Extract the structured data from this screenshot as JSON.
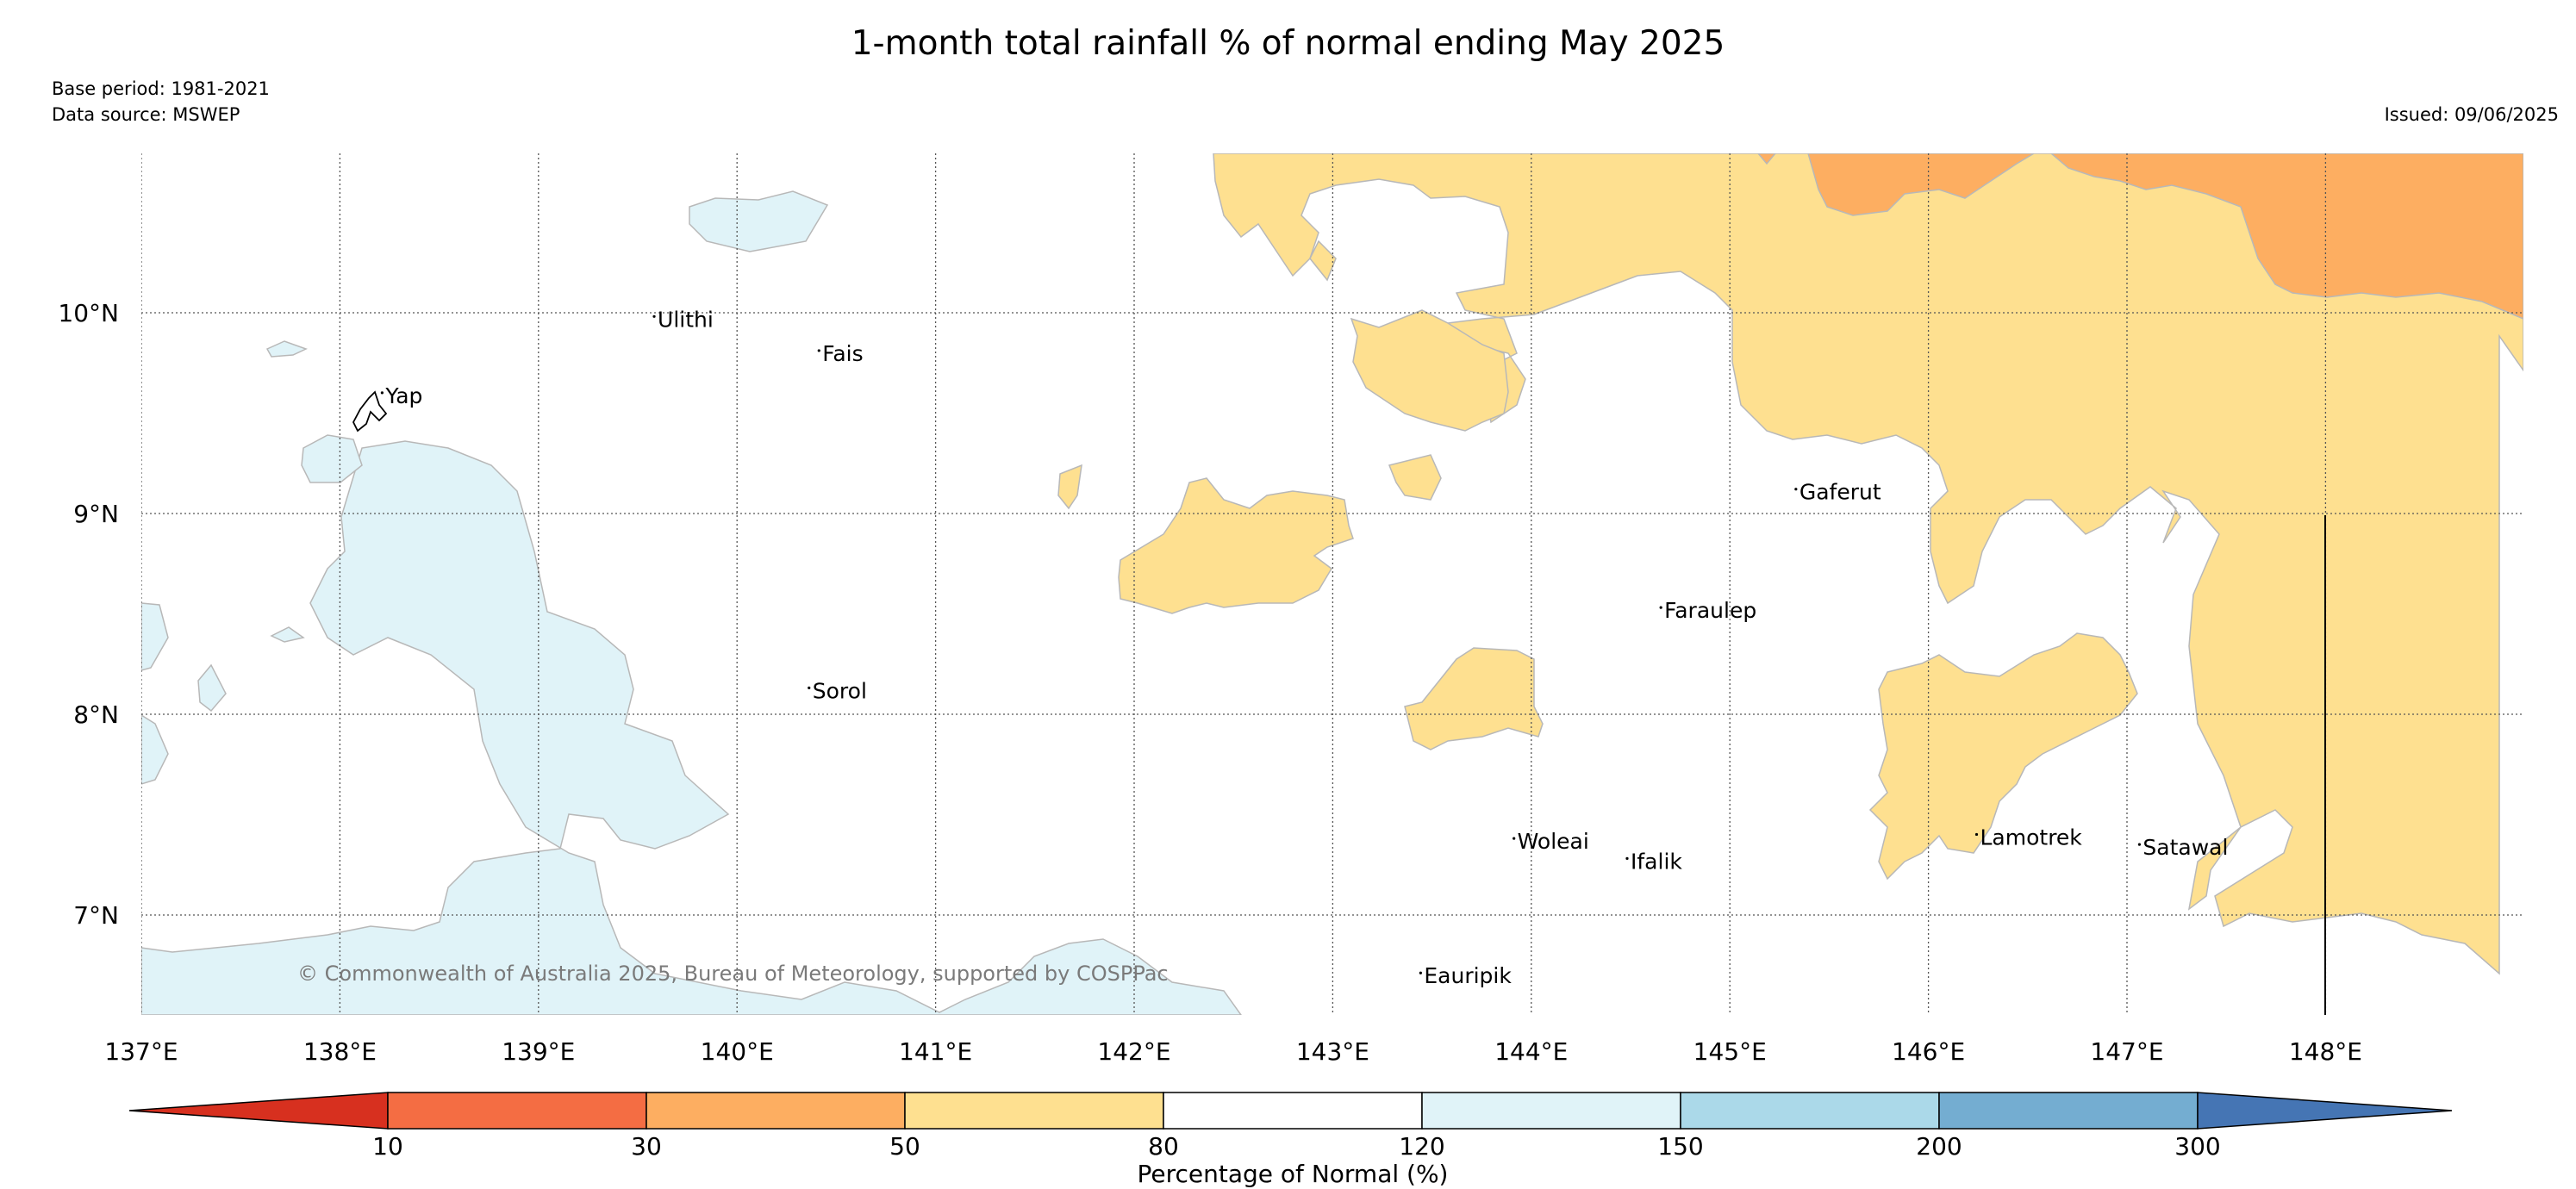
{
  "title": "1-month total rainfall % of normal ending May 2025",
  "base_period": "Base period: 1981-2021",
  "data_source": "Data source: MSWEP",
  "issued": "Issued: 09/06/2025",
  "copyright": "© Commonwealth of Australia 2025, Bureau of Meteorology, supported by COSPPac",
  "extent": {
    "lon": [
      137,
      149
    ],
    "lat": [
      6.5,
      10.8
    ]
  },
  "lon_ticks": [
    {
      "value": 137,
      "label": "137°E"
    },
    {
      "value": 138,
      "label": "138°E"
    },
    {
      "value": 139,
      "label": "139°E"
    },
    {
      "value": 140,
      "label": "140°E"
    },
    {
      "value": 141,
      "label": "141°E"
    },
    {
      "value": 142,
      "label": "142°E"
    },
    {
      "value": 143,
      "label": "143°E"
    },
    {
      "value": 144,
      "label": "144°E"
    },
    {
      "value": 145,
      "label": "145°E"
    },
    {
      "value": 146,
      "label": "146°E"
    },
    {
      "value": 147,
      "label": "147°E"
    },
    {
      "value": 148,
      "label": "148°E"
    }
  ],
  "lat_ticks": [
    {
      "value": 10,
      "label": "10°N"
    },
    {
      "value": 9,
      "label": "9°N"
    },
    {
      "value": 8,
      "label": "8°N"
    },
    {
      "value": 7,
      "label": "7°N"
    }
  ],
  "places": [
    {
      "name": "Ulithi",
      "lon": 139.6,
      "lat": 9.93
    },
    {
      "name": "Fais",
      "lon": 140.43,
      "lat": 9.76
    },
    {
      "name": "Yap",
      "lon": 138.23,
      "lat": 9.55
    },
    {
      "name": "Gaferut",
      "lon": 145.35,
      "lat": 9.07
    },
    {
      "name": "Faraulep",
      "lon": 144.67,
      "lat": 8.48
    },
    {
      "name": "Sorol",
      "lon": 140.38,
      "lat": 8.08
    },
    {
      "name": "Woleai",
      "lon": 143.93,
      "lat": 7.33
    },
    {
      "name": "Ifalik",
      "lon": 144.5,
      "lat": 7.23
    },
    {
      "name": "Lamotrek",
      "lon": 146.26,
      "lat": 7.35
    },
    {
      "name": "Satawal",
      "lon": 147.08,
      "lat": 7.3
    },
    {
      "name": "Eauripik",
      "lon": 143.46,
      "lat": 6.66
    }
  ],
  "colorbar": {
    "label": "Percentage of Normal (%)",
    "ticks": [
      "10",
      "30",
      "50",
      "80",
      "120",
      "150",
      "200",
      "300"
    ],
    "colors": [
      "#d7301f",
      "#f46d43",
      "#fdae61",
      "#fee090",
      "#ffffff",
      "#e0f3f8",
      "#abd9e9",
      "#74add1",
      "#4575b4"
    ]
  },
  "legend_color_map": {
    "30-50": "#fdae61",
    "50-80": "#fee090",
    "120-150": "#e0f3f8"
  }
}
